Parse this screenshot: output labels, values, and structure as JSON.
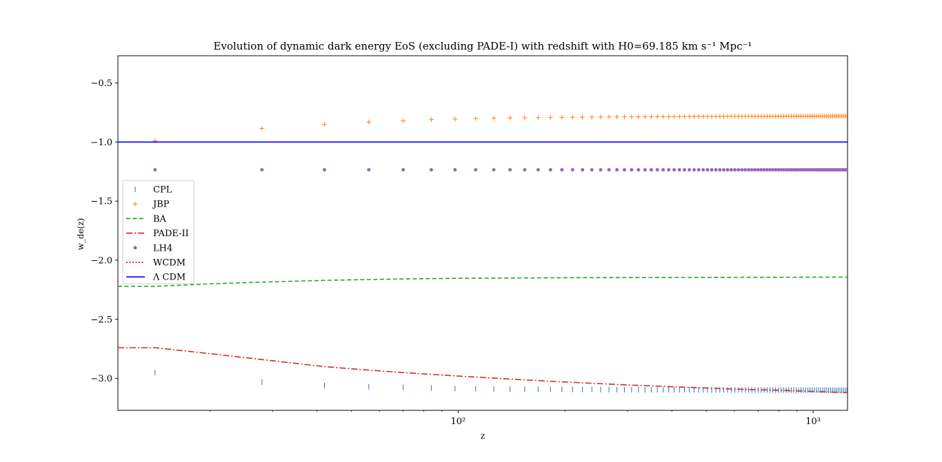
{
  "chart_data": {
    "type": "line",
    "title": "Evolution of dynamic dark energy EoS (excluding PADE-I) with redshift with H0=69.185 km s⁻¹ Mpc⁻¹",
    "xlabel": "z",
    "ylabel": "w_de(z)",
    "xscale": "log",
    "xlim": [
      11,
      1250
    ],
    "ylim": [
      -3.27,
      -0.27
    ],
    "yticks": [
      -0.5,
      -1.0,
      -1.5,
      -2.0,
      -2.5,
      -3.0
    ],
    "ytick_labels": [
      "−0.5",
      "−1.0",
      "−1.5",
      "−2.0",
      "−2.5",
      "−3.0"
    ],
    "xticks": [
      100,
      1000
    ],
    "xtick_labels": [
      "10²",
      "10³"
    ],
    "grid": false,
    "legend_position": "center-left",
    "marker_z": [
      14,
      28,
      42,
      56,
      70,
      84,
      98,
      112,
      126,
      140,
      154,
      168,
      182,
      196,
      210,
      224,
      238,
      252,
      266,
      280,
      294,
      308,
      322,
      336,
      350,
      364,
      378,
      392,
      406,
      420,
      434,
      448,
      462,
      476,
      490,
      504,
      518,
      532,
      546,
      560,
      574,
      588,
      602,
      616,
      630,
      644,
      658,
      672,
      686,
      700,
      714,
      728,
      742,
      756,
      770,
      784,
      798,
      812,
      826,
      840,
      854,
      868,
      882,
      896,
      910,
      924,
      938,
      952,
      966,
      980,
      994,
      1008,
      1022,
      1036,
      1050,
      1064,
      1078,
      1092,
      1106,
      1120,
      1134,
      1148,
      1162,
      1176,
      1190,
      1204,
      1218,
      1232,
      1246
    ],
    "series": [
      {
        "name": "CPL",
        "style": "vline-marker",
        "color": "#1f77b4",
        "x": [
          14,
          28,
          42,
          56,
          70,
          84,
          98,
          140,
          280,
          560,
          1000,
          1246
        ],
        "y": [
          -2.95,
          -3.03,
          -3.06,
          -3.07,
          -3.075,
          -3.08,
          -3.085,
          -3.09,
          -3.095,
          -3.097,
          -3.099,
          -3.1
        ]
      },
      {
        "name": "JBP",
        "style": "plus-marker",
        "color": "#ff7f0e",
        "x": [
          14,
          28,
          42,
          56,
          70,
          84,
          98,
          140,
          280,
          560,
          1000,
          1246
        ],
        "y": [
          -0.99,
          -0.885,
          -0.85,
          -0.83,
          -0.82,
          -0.81,
          -0.805,
          -0.795,
          -0.787,
          -0.783,
          -0.781,
          -0.78
        ]
      },
      {
        "name": "BA",
        "style": "dashed",
        "color": "#2ca02c",
        "x": [
          11,
          14,
          20,
          28,
          42,
          56,
          70,
          100,
          200,
          400,
          700,
          1250
        ],
        "y": [
          -2.22,
          -2.22,
          -2.2,
          -2.185,
          -2.17,
          -2.163,
          -2.158,
          -2.153,
          -2.148,
          -2.145,
          -2.144,
          -2.143
        ]
      },
      {
        "name": "PADE-II",
        "style": "dashdot",
        "color": "#d62728",
        "x": [
          11,
          14,
          20,
          28,
          42,
          56,
          70,
          100,
          150,
          200,
          300,
          400,
          600,
          800,
          1000,
          1250
        ],
        "y": [
          -2.74,
          -2.74,
          -2.79,
          -2.84,
          -2.9,
          -2.93,
          -2.95,
          -2.98,
          -3.01,
          -3.03,
          -3.055,
          -3.07,
          -3.09,
          -3.1,
          -3.11,
          -3.12
        ]
      },
      {
        "name": "LH4",
        "style": "dot-marker",
        "color": "#9467bd",
        "x": [
          14,
          1246
        ],
        "y": [
          -1.235,
          -1.235
        ]
      },
      {
        "name": "WCDM",
        "style": "dotted",
        "color": "#ff0000",
        "x": [],
        "y": []
      },
      {
        "name": "Λ CDM",
        "style": "solid",
        "color": "#0000ff",
        "x": [
          11,
          1250
        ],
        "y": [
          -1.0,
          -1.0
        ]
      }
    ]
  }
}
